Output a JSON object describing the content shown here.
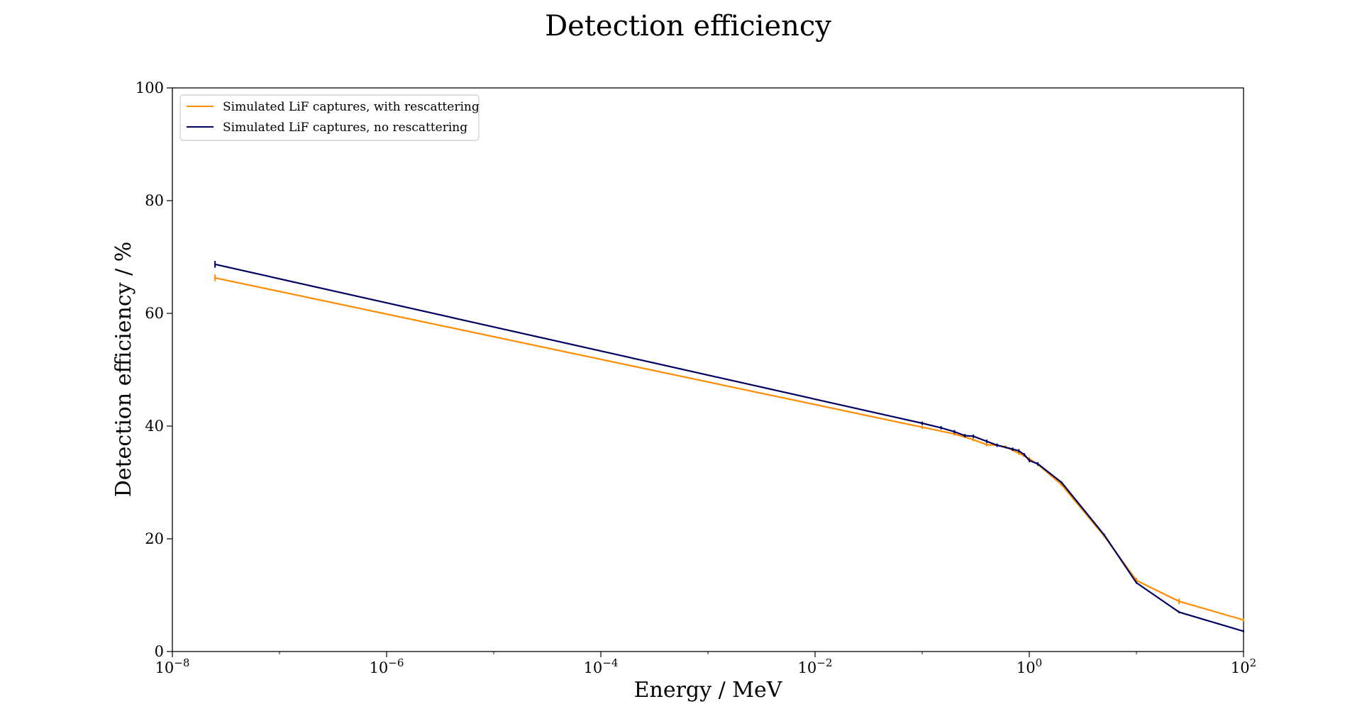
{
  "chart_data": {
    "type": "line",
    "title": "Detection efficiency",
    "xlabel": "Energy / MeV",
    "ylabel": "Detection efficiency / %",
    "xscale": "log",
    "xlim": [
      1e-08,
      100
    ],
    "ylim": [
      0,
      100
    ],
    "grid": false,
    "legend_position": "top-left",
    "x_ticks": [
      {
        "base": "10",
        "exp": "−8",
        "value": 1e-08
      },
      {
        "base": "10",
        "exp": "−6",
        "value": 1e-06
      },
      {
        "base": "10",
        "exp": "−4",
        "value": 0.0001
      },
      {
        "base": "10",
        "exp": "−2",
        "value": 0.01
      },
      {
        "base": "10",
        "exp": "0",
        "value": 1
      },
      {
        "base": "10",
        "exp": "2",
        "value": 100
      }
    ],
    "y_ticks": [
      "0",
      "20",
      "40",
      "60",
      "80",
      "100"
    ],
    "y_tick_values": [
      0,
      20,
      40,
      60,
      80,
      100
    ],
    "series": [
      {
        "name": "Simulated LiF captures, with rescattering",
        "color": "#ff8c00",
        "x": [
          2.5e-08,
          0.1,
          0.2,
          0.3,
          0.4,
          0.5,
          0.6,
          0.8,
          1.0,
          1.2,
          2.0,
          5.0,
          10.0,
          25.0,
          100.0
        ],
        "y": [
          66.3,
          39.8,
          38.6,
          37.6,
          36.7,
          36.6,
          36.3,
          35.2,
          34.2,
          33.2,
          29.6,
          20.5,
          12.6,
          8.9,
          5.6
        ],
        "errors": [
          0.6,
          0.3,
          0.3,
          0.3,
          0.3,
          0.3,
          0.3,
          0.3,
          0.3,
          0.3,
          0.3,
          0.3,
          0.5,
          0.5,
          0.3
        ]
      },
      {
        "name": "Simulated LiF captures, no rescattering",
        "color": "#000060",
        "x": [
          2.5e-08,
          0.1,
          0.15,
          0.2,
          0.25,
          0.3,
          0.4,
          0.5,
          0.7,
          0.8,
          0.9,
          1.0,
          1.2,
          2.0,
          5.0,
          10.0,
          25.0,
          100.0
        ],
        "y": [
          68.7,
          40.5,
          39.7,
          39.0,
          38.3,
          38.2,
          37.3,
          36.6,
          35.9,
          35.6,
          34.9,
          33.9,
          33.3,
          30.0,
          20.7,
          12.2,
          7.0,
          3.6
        ],
        "errors": [
          0.6,
          0.3,
          0.3,
          0.3,
          0.3,
          0.3,
          0.3,
          0.3,
          0.3,
          0.3,
          0.3,
          0.3,
          0.3,
          0.2,
          0.2,
          0.2,
          0.2,
          0.2
        ]
      }
    ]
  }
}
